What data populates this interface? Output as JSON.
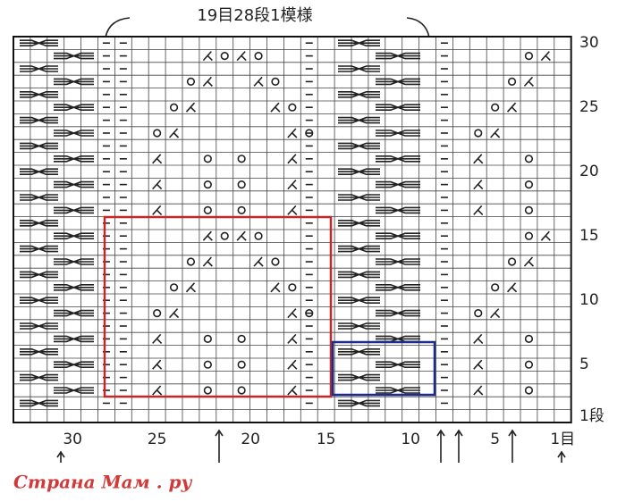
{
  "header": {
    "title": "19目28段1模様"
  },
  "row_labels": [
    "30",
    "25",
    "20",
    "15",
    "10",
    "5",
    "1段"
  ],
  "column_labels": [
    "30",
    "25",
    "20",
    "15",
    "10",
    "5",
    "1目"
  ],
  "watermark": "Страна Мам . ру"
}
